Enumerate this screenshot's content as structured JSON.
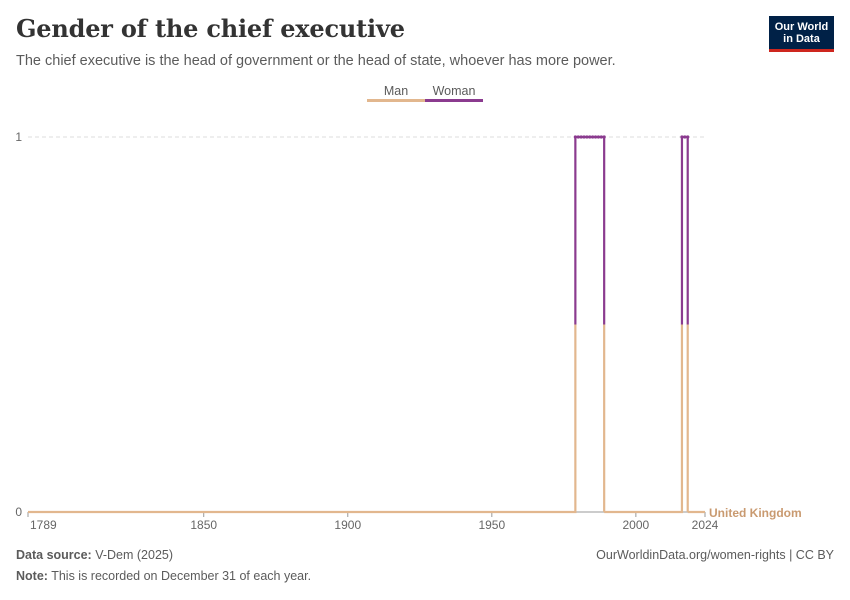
{
  "header": {
    "title": "Gender of the chief executive",
    "subtitle": "The chief executive is the head of government or the head of state, whoever has more power."
  },
  "logo": {
    "line1": "Our World",
    "line2": "in Data",
    "bg_color": "#002147",
    "accent_color": "#ce261e"
  },
  "legend": [
    {
      "label": "Man",
      "color": "#e2b78e"
    },
    {
      "label": "Woman",
      "color": "#8b3b8f"
    }
  ],
  "footer": {
    "source_label": "Data source:",
    "source_value": "V-Dem (2025)",
    "note_label": "Note:",
    "note_value": "This is recorded on December 31 of each year.",
    "url_license": "OurWorldinData.org/women-rights | CC BY"
  },
  "chart_data": {
    "type": "line",
    "title": "Gender of the chief executive",
    "entity": "United Kingdom",
    "x_ticks": [
      1789,
      1850,
      1900,
      1950,
      2000,
      2024
    ],
    "y_ticks": [
      0,
      1
    ],
    "xlim": [
      1789,
      2024
    ],
    "ylim": [
      0,
      1
    ],
    "woman_periods": [
      [
        1979,
        1989
      ],
      [
        2016,
        2018
      ]
    ],
    "series": [
      {
        "name": "Man",
        "color": "#e2b78e"
      },
      {
        "name": "Woman",
        "color": "#8b3b8f"
      }
    ]
  }
}
